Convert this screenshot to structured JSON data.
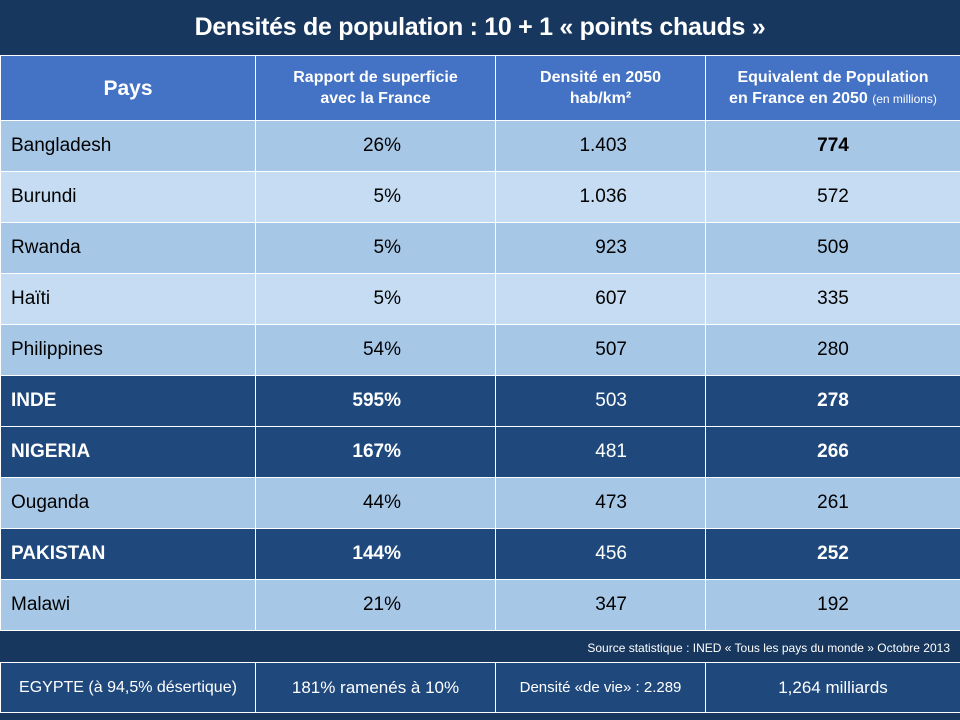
{
  "title": "Densités de population : 10 + 1 « points chauds »",
  "headers": {
    "pays": "Pays",
    "rapport_l1": "Rapport  de superficie",
    "rapport_l2": "avec la France",
    "densite_l1": "Densité  en 2050",
    "densite_l2": "hab/km²",
    "equiv_l1": "Equivalent de Population",
    "equiv_l2": "en France en 2050",
    "equiv_small": "(en millions)"
  },
  "rows": [
    {
      "pays": "Bangladesh",
      "rapport": "26%",
      "densite": "1.403",
      "equiv": "774"
    },
    {
      "pays": "Burundi",
      "rapport": "5%",
      "densite": "1.036",
      "equiv": "572"
    },
    {
      "pays": "Rwanda",
      "rapport": "5%",
      "densite": "923",
      "equiv": "509"
    },
    {
      "pays": "Haïti",
      "rapport": "5%",
      "densite": "607",
      "equiv": "335"
    },
    {
      "pays": "Philippines",
      "rapport": "54%",
      "densite": "507",
      "equiv": "280"
    },
    {
      "pays": "INDE",
      "rapport": "595%",
      "densite": "503",
      "equiv": "278"
    },
    {
      "pays": "NIGERIA",
      "rapport": "167%",
      "densite": "481",
      "equiv": "266"
    },
    {
      "pays": "Ouganda",
      "rapport": "44%",
      "densite": "473",
      "equiv": "261"
    },
    {
      "pays": "PAKISTAN",
      "rapport": "144%",
      "densite": "456",
      "equiv": "252"
    },
    {
      "pays": "Malawi",
      "rapport": "21%",
      "densite": "347",
      "equiv": "192"
    }
  ],
  "source": "Source statistique : INED  « Tous les pays du monde  »  Octobre 2013",
  "egypte": {
    "pays": "EGYPTE (à 94,5% désertique)",
    "rapport": "181%  ramenés à  10%",
    "densite": "Densité «de vie» : 2.289",
    "equiv": "1,264 milliards"
  },
  "colors": {
    "background": "#17375e",
    "header": "#4472c4",
    "row_light_a": "#a7c7e7",
    "row_light_b": "#c5dcf2",
    "row_dark": "#1f497d"
  }
}
